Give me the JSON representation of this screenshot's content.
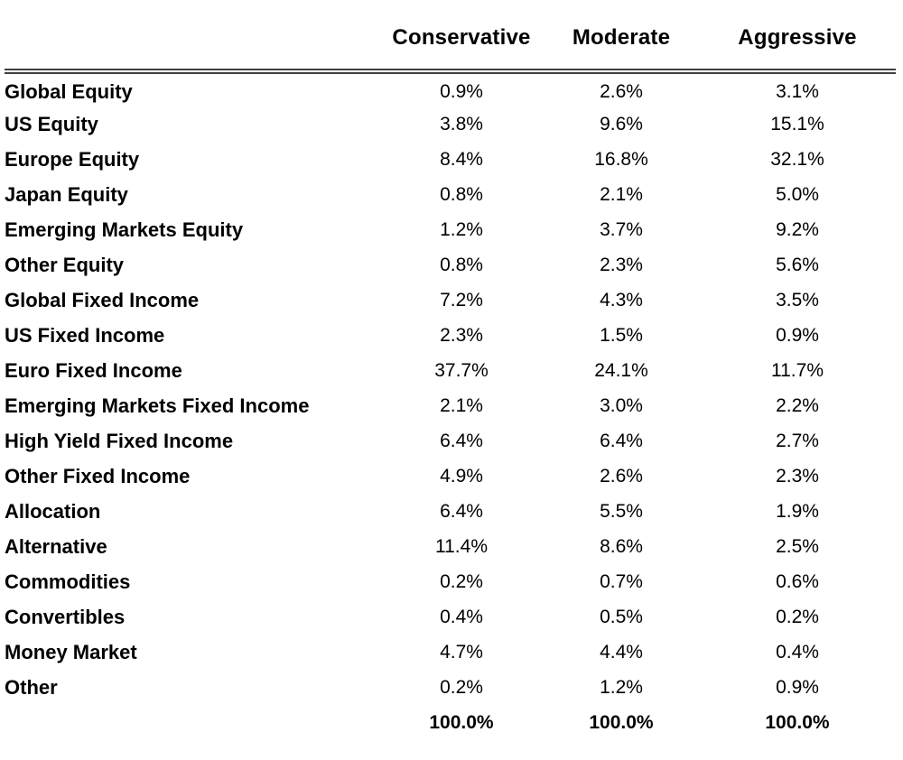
{
  "page": {
    "background_color": "#ffffff",
    "text_color": "#000000",
    "rule_color": "#404040"
  },
  "table": {
    "label_column_header": "",
    "columns": [
      "Conservative",
      "Moderate",
      "Aggressive"
    ],
    "rows": [
      {
        "label": "Global Equity",
        "values": [
          "0.9%",
          "2.6%",
          "3.1%"
        ]
      },
      {
        "label": "US Equity",
        "values": [
          "3.8%",
          "9.6%",
          "15.1%"
        ]
      },
      {
        "label": "Europe Equity",
        "values": [
          "8.4%",
          "16.8%",
          "32.1%"
        ]
      },
      {
        "label": "Japan Equity",
        "values": [
          "0.8%",
          "2.1%",
          "5.0%"
        ]
      },
      {
        "label": "Emerging Markets Equity",
        "values": [
          "1.2%",
          "3.7%",
          "9.2%"
        ]
      },
      {
        "label": "Other Equity",
        "values": [
          "0.8%",
          "2.3%",
          "5.6%"
        ]
      },
      {
        "label": "Global Fixed Income",
        "values": [
          "7.2%",
          "4.3%",
          "3.5%"
        ]
      },
      {
        "label": "US Fixed Income",
        "values": [
          "2.3%",
          "1.5%",
          "0.9%"
        ]
      },
      {
        "label": "Euro Fixed Income",
        "values": [
          "37.7%",
          "24.1%",
          "11.7%"
        ]
      },
      {
        "label": "Emerging Markets Fixed Income",
        "values": [
          "2.1%",
          "3.0%",
          "2.2%"
        ]
      },
      {
        "label": "High Yield Fixed Income",
        "values": [
          "6.4%",
          "6.4%",
          "2.7%"
        ]
      },
      {
        "label": "Other Fixed Income",
        "values": [
          "4.9%",
          "2.6%",
          "2.3%"
        ]
      },
      {
        "label": "Allocation",
        "values": [
          "6.4%",
          "5.5%",
          "1.9%"
        ]
      },
      {
        "label": "Alternative",
        "values": [
          "11.4%",
          "8.6%",
          "2.5%"
        ]
      },
      {
        "label": "Commodities",
        "values": [
          "0.2%",
          "0.7%",
          "0.6%"
        ]
      },
      {
        "label": "Convertibles",
        "values": [
          "0.4%",
          "0.5%",
          "0.2%"
        ]
      },
      {
        "label": "Money Market",
        "values": [
          "4.7%",
          "4.4%",
          "0.4%"
        ]
      },
      {
        "label": "Other",
        "values": [
          "0.2%",
          "1.2%",
          "0.9%"
        ]
      }
    ],
    "total_row": {
      "label": "",
      "values": [
        "100.0%",
        "100.0%",
        "100.0%"
      ]
    }
  },
  "chart_data": {
    "type": "table",
    "title": "",
    "unit": "%",
    "categories": [
      "Global Equity",
      "US Equity",
      "Europe Equity",
      "Japan Equity",
      "Emerging Markets Equity",
      "Other Equity",
      "Global Fixed Income",
      "US Fixed Income",
      "Euro Fixed Income",
      "Emerging Markets Fixed Income",
      "High Yield Fixed Income",
      "Other Fixed Income",
      "Allocation",
      "Alternative",
      "Commodities",
      "Convertibles",
      "Money Market",
      "Other"
    ],
    "series": [
      {
        "name": "Conservative",
        "values": [
          0.9,
          3.8,
          8.4,
          0.8,
          1.2,
          0.8,
          7.2,
          2.3,
          37.7,
          2.1,
          6.4,
          4.9,
          6.4,
          11.4,
          0.2,
          0.4,
          4.7,
          0.2
        ],
        "total": 100.0
      },
      {
        "name": "Moderate",
        "values": [
          2.6,
          9.6,
          16.8,
          2.1,
          3.7,
          2.3,
          4.3,
          1.5,
          24.1,
          3.0,
          6.4,
          2.6,
          5.5,
          8.6,
          0.7,
          0.5,
          4.4,
          1.2
        ],
        "total": 100.0
      },
      {
        "name": "Aggressive",
        "values": [
          3.1,
          15.1,
          32.1,
          5.0,
          9.2,
          5.6,
          3.5,
          0.9,
          11.7,
          2.2,
          2.7,
          2.3,
          1.9,
          2.5,
          0.6,
          0.2,
          0.4,
          0.9
        ],
        "total": 100.0
      }
    ]
  }
}
